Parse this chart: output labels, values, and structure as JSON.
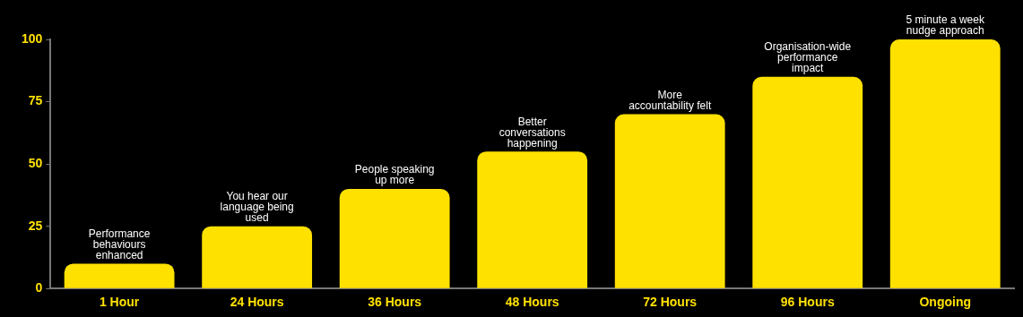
{
  "chart_data": {
    "type": "bar",
    "categories": [
      "1 Hour",
      "24 Hours",
      "36 Hours",
      "48 Hours",
      "72 Hours",
      "96 Hours",
      "Ongoing"
    ],
    "values": [
      10,
      25,
      40,
      55,
      70,
      85,
      100
    ],
    "color": "#ffe100",
    "ylim": [
      0,
      100
    ],
    "yticks": [
      0,
      25,
      50,
      75,
      100
    ],
    "grid": false,
    "legend": false,
    "annotations": [
      {
        "text": "Performance behaviours enhanced",
        "x": "1 Hour",
        "y": 10
      },
      {
        "text": "You hear our language being used",
        "x": "24 Hours",
        "y": 25
      },
      {
        "text": "People speaking up more",
        "x": "36 Hours",
        "y": 40
      },
      {
        "text": "Better conversations happening",
        "x": "48 Hours",
        "y": 55
      },
      {
        "text": "More accountability felt",
        "x": "72 Hours",
        "y": 70
      },
      {
        "text": "Organisation-wide performance impact",
        "x": "96 Hours",
        "y": 85
      },
      {
        "text": "5 minute a week nudge approach",
        "x": "Ongoing",
        "y": 100
      }
    ]
  }
}
